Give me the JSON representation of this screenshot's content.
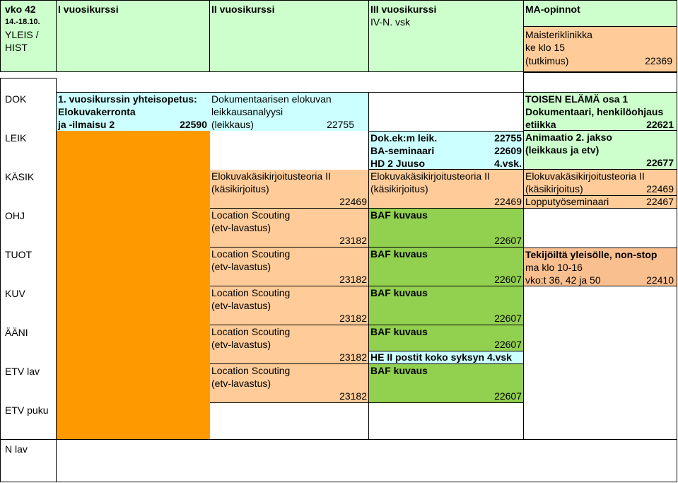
{
  "header": {
    "week": "vko 42",
    "dates": "14.-18.10.",
    "subject": "YLEIS /",
    "subject2": "HIST",
    "col1": "I vuosikurssi",
    "col2": "II vuosikurssi",
    "col3": "III vuosikurssi",
    "col3_sub": "IV-N. vsk",
    "col4": "MA-opinnot"
  },
  "rows": {
    "dok": "DOK",
    "leik": "LEIK",
    "kasik": "KÄSIK",
    "ohj": "OHJ",
    "tuot": "TUOT",
    "kuv": "KUV",
    "aani": "ÄÄNI",
    "etv_lav": "ETV lav",
    "etv_puku": "ETV puku",
    "n_lav": "N lav"
  },
  "cells": {
    "maisteri": {
      "l1": "Maisteriklinikka",
      "l2": "ke klo 15",
      "l3": "(tutkimus)",
      "code": "22369"
    },
    "yhteis": {
      "l1": "1. vuosikurssin yhteisopetus:",
      "l2": "Elokuvakerronta",
      "l3": "ja -ilmaisu 2",
      "code": "22590"
    },
    "dokelo": {
      "l1": "Dokumentaarisen elokuvan",
      "l2": "leikkausanalyysi",
      "l3": "(leikkaus)",
      "code": "22755"
    },
    "toisen": {
      "l1": "TOISEN ELÄMÄ osa 1",
      "l2": "Dokumentaari, henkilöohjaus",
      "l3": "etiikka",
      "code": "22621"
    },
    "dokek": {
      "l1": "Dok.ek:m leik.",
      "code1": "22755",
      "l2": "BA-seminaari",
      "code2": "22609",
      "l3": "HD 2 Juuso",
      "l3b": "4.vsk."
    },
    "animaatio": {
      "l1": "Animaatio 2. jakso",
      "l2": "(leikkaus ja etv)",
      "code": "22677"
    },
    "kasik2": {
      "l1": "Elokuvakäsikirjoitusteoria II",
      "l2": "(käsikirjoitus)",
      "code": "22469"
    },
    "kasik3": {
      "l1": "Elokuvakäsikirjoitusteoria II",
      "l2": "(käsikirjoitus)",
      "code": "22469"
    },
    "kasik4": {
      "l1": "Elokuvakäsikirjoitusteoria II",
      "l2": "(käsikirjoitus)",
      "code": "22469"
    },
    "lopputyo": {
      "l1": "Lopputyöseminaari",
      "code": "22467"
    },
    "location": {
      "l1": "Location Scouting",
      "l2": "(etv-lavastus)",
      "code": "23182"
    },
    "baf": {
      "l1": "BAF kuvaus",
      "code": "22607"
    },
    "tekijoilta": {
      "l1": "Tekijöiltä yleisölle, non-stop",
      "l2": "ma klo 10-16",
      "l3": "vko:t 36, 42 ja 50",
      "code": "22410"
    },
    "he": {
      "l1": "HE II postit koko syksyn 4.vsk"
    }
  }
}
